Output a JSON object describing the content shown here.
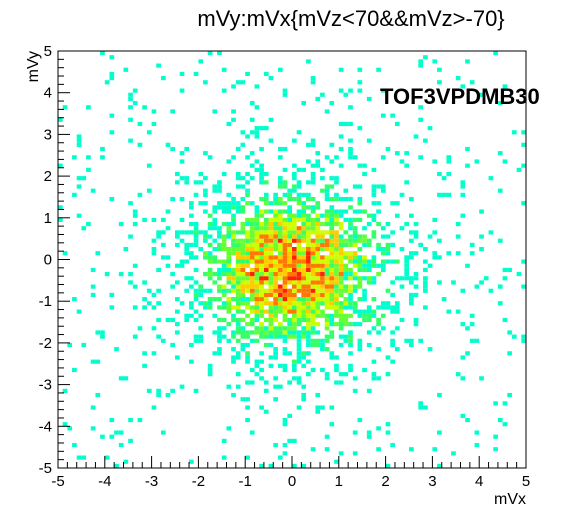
{
  "chart_data": {
    "type": "heatmap",
    "title": "mVy:mVx{mVz<70&&mVz>-70}",
    "xlabel": "mVx",
    "ylabel": "mVy",
    "annotation": "TOF3VPDMB30",
    "xlim": [
      -5,
      5
    ],
    "ylim": [
      -5,
      5
    ],
    "bins": 100,
    "x_ticks": [
      "-5",
      "-4",
      "-3",
      "-2",
      "-1",
      "0",
      "1",
      "2",
      "3",
      "4",
      "5"
    ],
    "y_ticks": [
      "-5",
      "-4",
      "-3",
      "-2",
      "-1",
      "0",
      "1",
      "2",
      "3",
      "4",
      "5"
    ],
    "distribution": {
      "shape": "2D gaussian peak",
      "center": [
        0.0,
        -0.25
      ],
      "sigma_x": 1.3,
      "sigma_y": 1.25,
      "peak_center": [
        0.0,
        -0.25
      ]
    },
    "colormap": [
      "#00ffcc",
      "#33ff66",
      "#66ff33",
      "#ccff00",
      "#ffcc00",
      "#ff7700",
      "#ff2200"
    ],
    "grid": false,
    "legend": "none"
  }
}
